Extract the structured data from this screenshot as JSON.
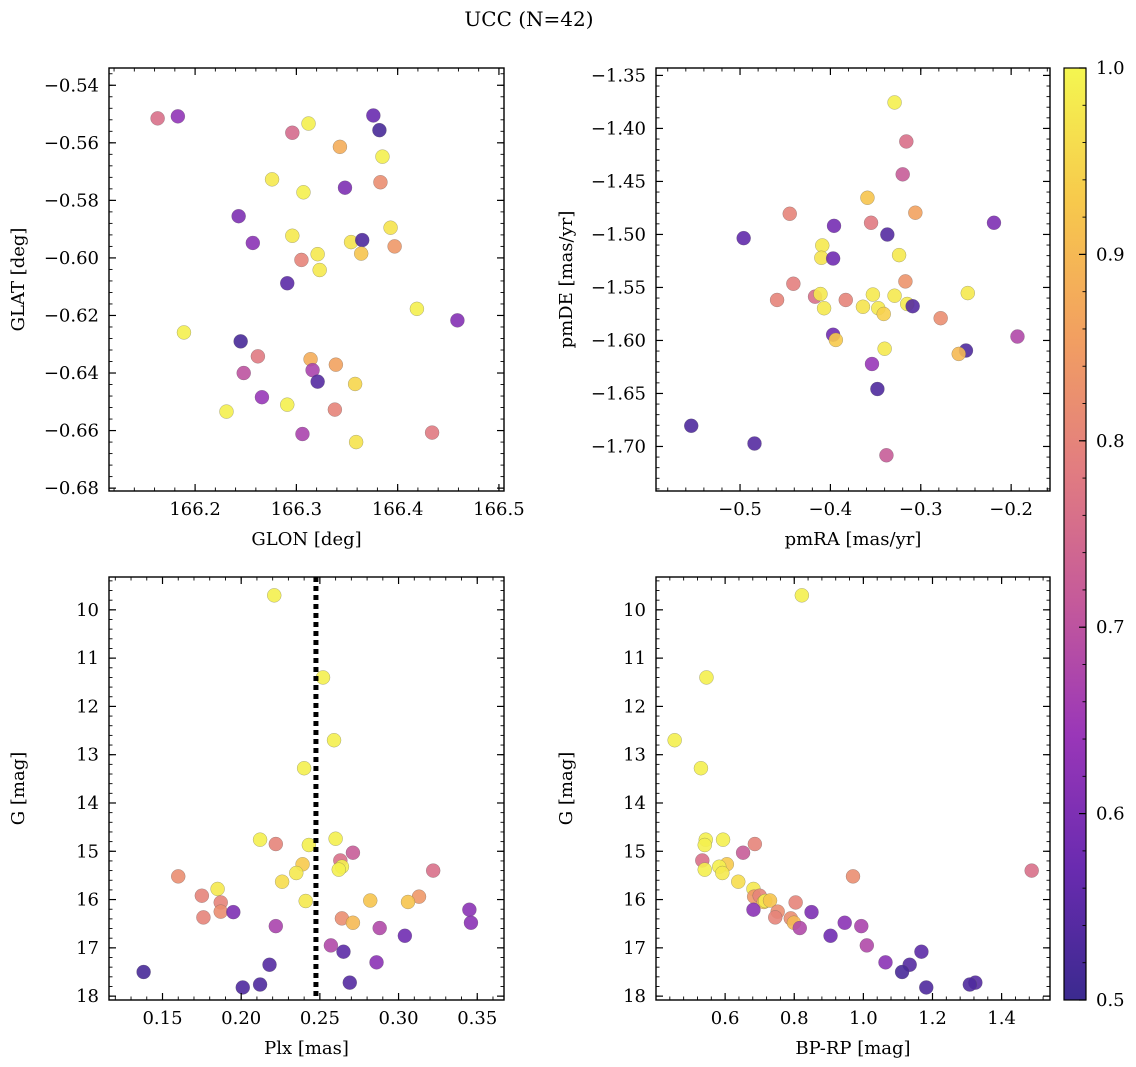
{
  "figure": {
    "title": "UCC (N=42)"
  },
  "colorbar": {
    "vmin": 0.5,
    "vmax": 1.0,
    "ticks": [
      "0.5",
      "0.6",
      "0.7",
      "0.8",
      "0.9",
      "1.0"
    ],
    "colormap": "plasma",
    "stops": [
      "#3b2a8f",
      "#6a2bb0",
      "#9a37b8",
      "#c55a9a",
      "#e27d80",
      "#f2a060",
      "#f7c94c",
      "#f4f650"
    ]
  },
  "chart_data": [
    {
      "type": "scatter",
      "xlabel": "GLON [deg]",
      "ylabel": "GLAT [deg]",
      "xlim": [
        166.115,
        166.505
      ],
      "ylim": [
        -0.681,
        -0.534
      ],
      "xticks": [
        166.2,
        166.3,
        166.4,
        166.5
      ],
      "xtick_labels": [
        "166.2",
        "166.3",
        "166.4",
        "166.5"
      ],
      "yticks": [
        -0.68,
        -0.66,
        -0.64,
        -0.62,
        -0.6,
        -0.58,
        -0.56,
        -0.54
      ],
      "ytick_labels": [
        "−0.68",
        "−0.66",
        "−0.64",
        "−0.62",
        "−0.60",
        "−0.58",
        "−0.56",
        "−0.54"
      ],
      "points": [
        {
          "x": 166.163,
          "y": -0.5515,
          "c": 0.76
        },
        {
          "x": 166.183,
          "y": -0.5508,
          "c": 0.63
        },
        {
          "x": 166.296,
          "y": -0.5565,
          "c": 0.75
        },
        {
          "x": 166.312,
          "y": -0.5533,
          "c": 0.99
        },
        {
          "x": 166.343,
          "y": -0.5614,
          "c": 0.88
        },
        {
          "x": 166.376,
          "y": -0.5505,
          "c": 0.57
        },
        {
          "x": 166.382,
          "y": -0.5556,
          "c": 0.52
        },
        {
          "x": 166.385,
          "y": -0.5648,
          "c": 0.99
        },
        {
          "x": 166.276,
          "y": -0.5727,
          "c": 0.98
        },
        {
          "x": 166.307,
          "y": -0.5772,
          "c": 0.99
        },
        {
          "x": 166.348,
          "y": -0.5756,
          "c": 0.6
        },
        {
          "x": 166.383,
          "y": -0.5737,
          "c": 0.82
        },
        {
          "x": 166.243,
          "y": -0.5855,
          "c": 0.6
        },
        {
          "x": 166.257,
          "y": -0.5948,
          "c": 0.62
        },
        {
          "x": 166.296,
          "y": -0.5923,
          "c": 0.98
        },
        {
          "x": 166.354,
          "y": -0.5945,
          "c": 0.97
        },
        {
          "x": 166.365,
          "y": -0.5938,
          "c": 0.53
        },
        {
          "x": 166.393,
          "y": -0.5895,
          "c": 0.97
        },
        {
          "x": 166.397,
          "y": -0.596,
          "c": 0.84
        },
        {
          "x": 166.305,
          "y": -0.6007,
          "c": 0.8
        },
        {
          "x": 166.321,
          "y": -0.5987,
          "c": 0.98
        },
        {
          "x": 166.323,
          "y": -0.6042,
          "c": 0.98
        },
        {
          "x": 166.364,
          "y": -0.5985,
          "c": 0.92
        },
        {
          "x": 166.291,
          "y": -0.6088,
          "c": 0.55
        },
        {
          "x": 166.419,
          "y": -0.6177,
          "c": 0.99
        },
        {
          "x": 166.459,
          "y": -0.6217,
          "c": 0.61
        },
        {
          "x": 166.189,
          "y": -0.6259,
          "c": 0.99
        },
        {
          "x": 166.245,
          "y": -0.629,
          "c": 0.52
        },
        {
          "x": 166.262,
          "y": -0.6342,
          "c": 0.78
        },
        {
          "x": 166.248,
          "y": -0.64,
          "c": 0.7
        },
        {
          "x": 166.314,
          "y": -0.6352,
          "c": 0.88
        },
        {
          "x": 166.316,
          "y": -0.639,
          "c": 0.67
        },
        {
          "x": 166.321,
          "y": -0.643,
          "c": 0.54
        },
        {
          "x": 166.339,
          "y": -0.6371,
          "c": 0.86
        },
        {
          "x": 166.266,
          "y": -0.6484,
          "c": 0.64
        },
        {
          "x": 166.231,
          "y": -0.6534,
          "c": 0.99
        },
        {
          "x": 166.291,
          "y": -0.651,
          "c": 0.99
        },
        {
          "x": 166.338,
          "y": -0.6527,
          "c": 0.8
        },
        {
          "x": 166.358,
          "y": -0.6438,
          "c": 0.95
        },
        {
          "x": 166.306,
          "y": -0.6612,
          "c": 0.67
        },
        {
          "x": 166.359,
          "y": -0.664,
          "c": 0.97
        },
        {
          "x": 166.434,
          "y": -0.6607,
          "c": 0.78
        }
      ]
    },
    {
      "type": "scatter",
      "xlabel": "pmRA [mas/yr]",
      "ylabel": "pmDE [mas/yr]",
      "xlim": [
        -0.593,
        -0.157
      ],
      "ylim": [
        -1.742,
        -1.343
      ],
      "xticks": [
        -0.5,
        -0.4,
        -0.3,
        -0.2
      ],
      "xtick_labels": [
        "−0.5",
        "−0.4",
        "−0.3",
        "−0.2"
      ],
      "yticks": [
        -1.7,
        -1.65,
        -1.6,
        -1.55,
        -1.5,
        -1.45,
        -1.4,
        -1.35
      ],
      "ytick_labels": [
        "−1.70",
        "−1.65",
        "−1.60",
        "−1.55",
        "−1.50",
        "−1.45",
        "−1.40",
        "−1.35"
      ],
      "points": [
        {
          "x": -0.329,
          "y": -1.3755,
          "c": 0.99
        },
        {
          "x": -0.316,
          "y": -1.4123,
          "c": 0.76
        },
        {
          "x": -0.32,
          "y": -1.4433,
          "c": 0.72
        },
        {
          "x": -0.359,
          "y": -1.4654,
          "c": 0.92
        },
        {
          "x": -0.445,
          "y": -1.4805,
          "c": 0.8
        },
        {
          "x": -0.306,
          "y": -1.4795,
          "c": 0.86
        },
        {
          "x": -0.355,
          "y": -1.489,
          "c": 0.78
        },
        {
          "x": -0.396,
          "y": -1.4919,
          "c": 0.59
        },
        {
          "x": -0.219,
          "y": -1.489,
          "c": 0.6
        },
        {
          "x": -0.496,
          "y": -1.5035,
          "c": 0.56
        },
        {
          "x": -0.337,
          "y": -1.5001,
          "c": 0.54
        },
        {
          "x": -0.409,
          "y": -1.5104,
          "c": 0.98
        },
        {
          "x": -0.41,
          "y": -1.522,
          "c": 0.97
        },
        {
          "x": -0.397,
          "y": -1.5227,
          "c": 0.58
        },
        {
          "x": -0.324,
          "y": -1.5195,
          "c": 0.98
        },
        {
          "x": -0.441,
          "y": -1.5465,
          "c": 0.79
        },
        {
          "x": -0.317,
          "y": -1.5443,
          "c": 0.83
        },
        {
          "x": -0.459,
          "y": -1.5618,
          "c": 0.8
        },
        {
          "x": -0.417,
          "y": -1.5587,
          "c": 0.76
        },
        {
          "x": -0.411,
          "y": -1.5562,
          "c": 0.98
        },
        {
          "x": -0.383,
          "y": -1.5618,
          "c": 0.8
        },
        {
          "x": -0.353,
          "y": -1.5567,
          "c": 0.98
        },
        {
          "x": -0.329,
          "y": -1.5578,
          "c": 0.98
        },
        {
          "x": -0.248,
          "y": -1.5553,
          "c": 0.98
        },
        {
          "x": -0.407,
          "y": -1.5696,
          "c": 0.98
        },
        {
          "x": -0.364,
          "y": -1.5682,
          "c": 0.97
        },
        {
          "x": -0.347,
          "y": -1.5696,
          "c": 0.98
        },
        {
          "x": -0.315,
          "y": -1.5656,
          "c": 0.98
        },
        {
          "x": -0.309,
          "y": -1.5677,
          "c": 0.54
        },
        {
          "x": -0.341,
          "y": -1.575,
          "c": 0.94
        },
        {
          "x": -0.278,
          "y": -1.579,
          "c": 0.82
        },
        {
          "x": -0.397,
          "y": -1.5946,
          "c": 0.58
        },
        {
          "x": -0.394,
          "y": -1.5995,
          "c": 0.93
        },
        {
          "x": -0.34,
          "y": -1.6078,
          "c": 0.98
        },
        {
          "x": -0.25,
          "y": -1.6095,
          "c": 0.53
        },
        {
          "x": -0.258,
          "y": -1.6127,
          "c": 0.9
        },
        {
          "x": -0.193,
          "y": -1.5963,
          "c": 0.68
        },
        {
          "x": -0.354,
          "y": -1.6222,
          "c": 0.64
        },
        {
          "x": -0.348,
          "y": -1.6458,
          "c": 0.53
        },
        {
          "x": -0.554,
          "y": -1.6805,
          "c": 0.53
        },
        {
          "x": -0.484,
          "y": -1.6972,
          "c": 0.54
        },
        {
          "x": -0.338,
          "y": -1.7083,
          "c": 0.72
        }
      ]
    },
    {
      "type": "scatter",
      "xlabel": "Plx [mas]",
      "ylabel": "G [mag]",
      "xlim": [
        0.116,
        0.367
      ],
      "ylim": [
        18.08,
        9.32
      ],
      "y_inverted": true,
      "xticks": [
        0.15,
        0.2,
        0.25,
        0.3,
        0.35
      ],
      "xtick_labels": [
        "0.15",
        "0.20",
        "0.25",
        "0.30",
        "0.35"
      ],
      "yticks": [
        10,
        11,
        12,
        13,
        14,
        15,
        16,
        17,
        18
      ],
      "ytick_labels": [
        "10",
        "11",
        "12",
        "13",
        "14",
        "15",
        "16",
        "17",
        "18"
      ],
      "vline": {
        "x": 0.2475,
        "style": "dotted"
      },
      "points": [
        {
          "x": 0.221,
          "y": 9.7,
          "c": 0.99
        },
        {
          "x": 0.252,
          "y": 11.4,
          "c": 0.99
        },
        {
          "x": 0.259,
          "y": 12.7,
          "c": 0.99
        },
        {
          "x": 0.24,
          "y": 13.28,
          "c": 0.99
        },
        {
          "x": 0.212,
          "y": 14.76,
          "c": 0.99
        },
        {
          "x": 0.222,
          "y": 14.85,
          "c": 0.8
        },
        {
          "x": 0.243,
          "y": 14.87,
          "c": 0.99
        },
        {
          "x": 0.26,
          "y": 14.74,
          "c": 0.99
        },
        {
          "x": 0.271,
          "y": 15.03,
          "c": 0.72
        },
        {
          "x": 0.263,
          "y": 15.19,
          "c": 0.76
        },
        {
          "x": 0.239,
          "y": 15.27,
          "c": 0.93
        },
        {
          "x": 0.264,
          "y": 15.32,
          "c": 0.99
        },
        {
          "x": 0.262,
          "y": 15.38,
          "c": 0.99
        },
        {
          "x": 0.322,
          "y": 15.4,
          "c": 0.76
        },
        {
          "x": 0.235,
          "y": 15.45,
          "c": 0.98
        },
        {
          "x": 0.16,
          "y": 15.52,
          "c": 0.82
        },
        {
          "x": 0.226,
          "y": 15.63,
          "c": 0.96
        },
        {
          "x": 0.185,
          "y": 15.78,
          "c": 0.98
        },
        {
          "x": 0.175,
          "y": 15.92,
          "c": 0.8
        },
        {
          "x": 0.313,
          "y": 15.94,
          "c": 0.84
        },
        {
          "x": 0.187,
          "y": 16.06,
          "c": 0.8
        },
        {
          "x": 0.241,
          "y": 16.03,
          "c": 0.98
        },
        {
          "x": 0.282,
          "y": 16.02,
          "c": 0.92
        },
        {
          "x": 0.306,
          "y": 16.05,
          "c": 0.92
        },
        {
          "x": 0.187,
          "y": 16.25,
          "c": 0.82
        },
        {
          "x": 0.195,
          "y": 16.26,
          "c": 0.6
        },
        {
          "x": 0.176,
          "y": 16.37,
          "c": 0.8
        },
        {
          "x": 0.345,
          "y": 16.21,
          "c": 0.62
        },
        {
          "x": 0.264,
          "y": 16.39,
          "c": 0.82
        },
        {
          "x": 0.271,
          "y": 16.48,
          "c": 0.9
        },
        {
          "x": 0.346,
          "y": 16.48,
          "c": 0.62
        },
        {
          "x": 0.222,
          "y": 16.55,
          "c": 0.67
        },
        {
          "x": 0.288,
          "y": 16.59,
          "c": 0.68
        },
        {
          "x": 0.304,
          "y": 16.75,
          "c": 0.58
        },
        {
          "x": 0.257,
          "y": 16.95,
          "c": 0.68
        },
        {
          "x": 0.265,
          "y": 17.08,
          "c": 0.55
        },
        {
          "x": 0.286,
          "y": 17.3,
          "c": 0.62
        },
        {
          "x": 0.218,
          "y": 17.35,
          "c": 0.54
        },
        {
          "x": 0.138,
          "y": 17.5,
          "c": 0.52
        },
        {
          "x": 0.269,
          "y": 17.72,
          "c": 0.54
        },
        {
          "x": 0.212,
          "y": 17.76,
          "c": 0.53
        },
        {
          "x": 0.201,
          "y": 17.82,
          "c": 0.53
        }
      ]
    },
    {
      "type": "scatter",
      "xlabel": "BP-RP [mag]",
      "ylabel": "G [mag]",
      "xlim": [
        0.4,
        1.54
      ],
      "ylim": [
        18.08,
        9.32
      ],
      "y_inverted": true,
      "xticks": [
        0.6,
        0.8,
        1.0,
        1.2,
        1.4
      ],
      "xtick_labels": [
        "0.6",
        "0.8",
        "1.0",
        "1.2",
        "1.4"
      ],
      "yticks": [
        10,
        11,
        12,
        13,
        14,
        15,
        16,
        17,
        18
      ],
      "ytick_labels": [
        "10",
        "11",
        "12",
        "13",
        "14",
        "15",
        "16",
        "17",
        "18"
      ],
      "points": [
        {
          "x": 0.822,
          "y": 9.7,
          "c": 0.99
        },
        {
          "x": 0.546,
          "y": 11.4,
          "c": 0.99
        },
        {
          "x": 0.454,
          "y": 12.7,
          "c": 0.99
        },
        {
          "x": 0.53,
          "y": 13.28,
          "c": 0.99
        },
        {
          "x": 0.544,
          "y": 14.76,
          "c": 0.99
        },
        {
          "x": 0.541,
          "y": 14.87,
          "c": 0.99
        },
        {
          "x": 0.594,
          "y": 14.76,
          "c": 0.99
        },
        {
          "x": 0.686,
          "y": 14.85,
          "c": 0.8
        },
        {
          "x": 0.652,
          "y": 15.03,
          "c": 0.72
        },
        {
          "x": 0.534,
          "y": 15.19,
          "c": 0.76
        },
        {
          "x": 0.605,
          "y": 15.27,
          "c": 0.93
        },
        {
          "x": 0.583,
          "y": 15.32,
          "c": 0.99
        },
        {
          "x": 0.541,
          "y": 15.38,
          "c": 0.99
        },
        {
          "x": 0.592,
          "y": 15.45,
          "c": 0.98
        },
        {
          "x": 0.97,
          "y": 15.52,
          "c": 0.82
        },
        {
          "x": 1.487,
          "y": 15.4,
          "c": 0.76
        },
        {
          "x": 0.638,
          "y": 15.63,
          "c": 0.96
        },
        {
          "x": 0.682,
          "y": 15.78,
          "c": 0.98
        },
        {
          "x": 0.684,
          "y": 15.94,
          "c": 0.84
        },
        {
          "x": 0.7,
          "y": 15.92,
          "c": 0.8
        },
        {
          "x": 0.712,
          "y": 16.05,
          "c": 0.92
        },
        {
          "x": 0.716,
          "y": 16.03,
          "c": 0.98
        },
        {
          "x": 0.73,
          "y": 16.02,
          "c": 0.92
        },
        {
          "x": 0.804,
          "y": 16.06,
          "c": 0.8
        },
        {
          "x": 0.682,
          "y": 16.21,
          "c": 0.62
        },
        {
          "x": 0.752,
          "y": 16.25,
          "c": 0.82
        },
        {
          "x": 0.85,
          "y": 16.26,
          "c": 0.6
        },
        {
          "x": 0.745,
          "y": 16.37,
          "c": 0.8
        },
        {
          "x": 0.79,
          "y": 16.39,
          "c": 0.82
        },
        {
          "x": 0.799,
          "y": 16.48,
          "c": 0.9
        },
        {
          "x": 0.946,
          "y": 16.48,
          "c": 0.62
        },
        {
          "x": 0.816,
          "y": 16.59,
          "c": 0.68
        },
        {
          "x": 0.994,
          "y": 16.55,
          "c": 0.67
        },
        {
          "x": 0.905,
          "y": 16.75,
          "c": 0.58
        },
        {
          "x": 1.01,
          "y": 16.95,
          "c": 0.68
        },
        {
          "x": 1.168,
          "y": 17.08,
          "c": 0.55
        },
        {
          "x": 1.064,
          "y": 17.3,
          "c": 0.62
        },
        {
          "x": 1.134,
          "y": 17.35,
          "c": 0.54
        },
        {
          "x": 1.112,
          "y": 17.5,
          "c": 0.52
        },
        {
          "x": 1.324,
          "y": 17.72,
          "c": 0.54
        },
        {
          "x": 1.308,
          "y": 17.76,
          "c": 0.53
        },
        {
          "x": 1.182,
          "y": 17.82,
          "c": 0.53
        }
      ]
    }
  ]
}
